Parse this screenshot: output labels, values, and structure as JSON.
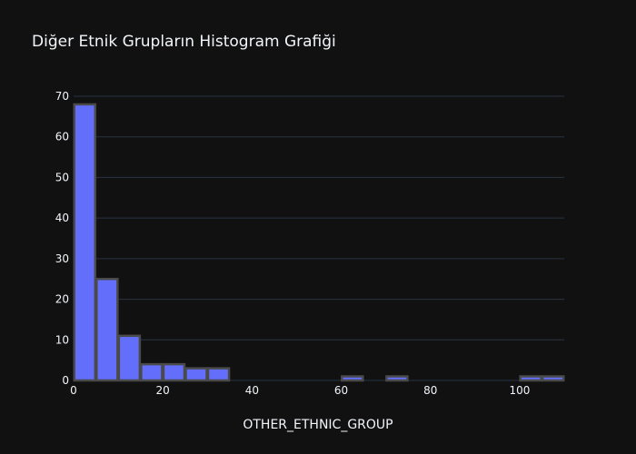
{
  "chart_data": {
    "type": "histogram",
    "title": "Diğer Etnik Grupların Histogram Grafiği",
    "x_label": "OTHER_ETHNIC_GROUP",
    "bins": [
      0,
      5,
      10,
      15,
      20,
      25,
      30,
      35,
      40,
      45,
      50,
      55,
      60,
      65,
      70,
      75,
      80,
      85,
      90,
      95,
      100,
      105,
      110
    ],
    "values": [
      68,
      25,
      11,
      4,
      4,
      3,
      3,
      0,
      0,
      0,
      0,
      0,
      1,
      0,
      1,
      0,
      0,
      0,
      0,
      0,
      1,
      1
    ],
    "color": "#636efa",
    "edge_color": "#4a4a4a",
    "xlim": [
      0,
      110
    ],
    "xticks": [
      0,
      20,
      40,
      60,
      80,
      100
    ],
    "ylim": [
      0,
      70
    ],
    "yticks": [
      0,
      10,
      20,
      30,
      40,
      50,
      60,
      70
    ],
    "grid": true
  }
}
